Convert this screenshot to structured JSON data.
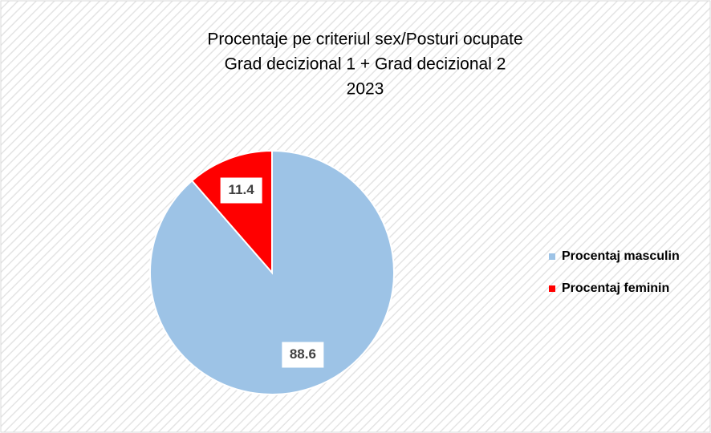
{
  "chart_data": {
    "type": "pie",
    "title": [
      "Procentaje pe criteriul sex/Posturi ocupate",
      "Grad decizional 1 + Grad decizional 2",
      "2023"
    ],
    "categories": [
      "Procentaj masculin",
      "Procentaj feminin"
    ],
    "values": [
      88.6,
      11.4
    ],
    "colors": [
      "#9dc3e6",
      "#ff0000"
    ],
    "legend": "right"
  }
}
